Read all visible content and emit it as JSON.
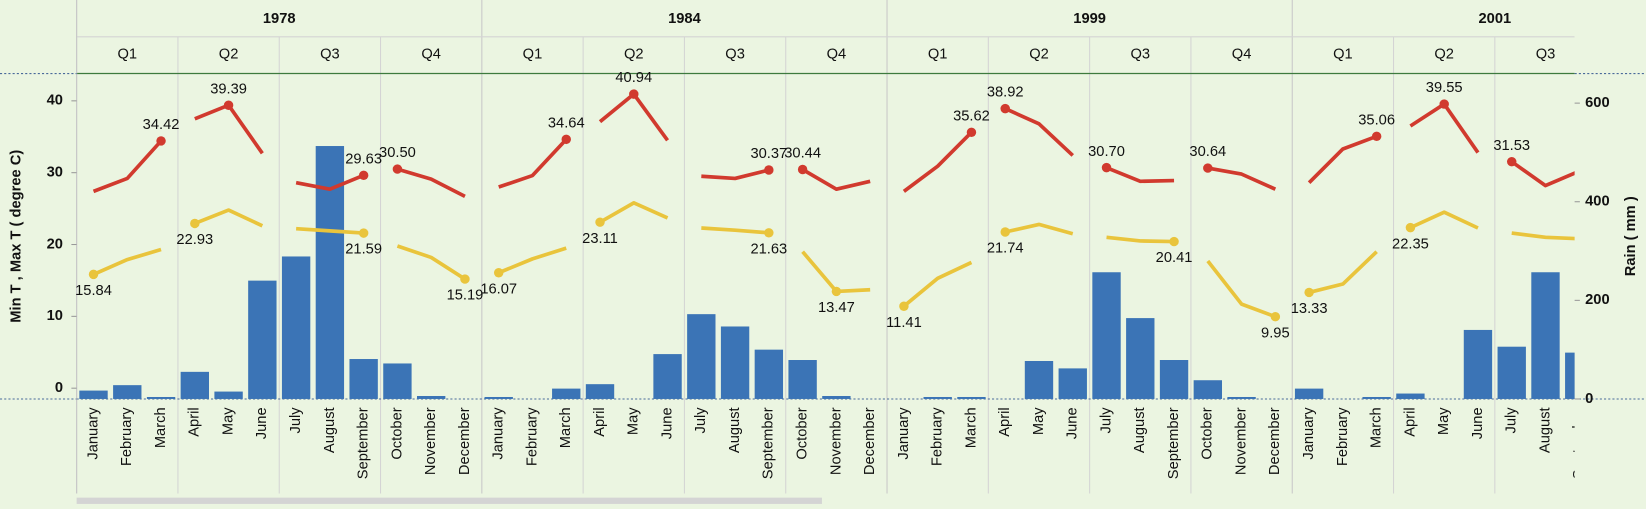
{
  "chart_data": {
    "type": "combo",
    "groups": [
      {
        "label": "1978",
        "quarters": [
          {
            "label": "Q1",
            "months": [
              "January",
              "February",
              "March"
            ]
          },
          {
            "label": "Q2",
            "months": [
              "April",
              "May",
              "June"
            ]
          },
          {
            "label": "Q3",
            "months": [
              "July",
              "August",
              "September"
            ]
          },
          {
            "label": "Q4",
            "months": [
              "October",
              "November",
              "December"
            ]
          }
        ]
      },
      {
        "label": "1984",
        "quarters": [
          {
            "label": "Q1",
            "months": [
              "January",
              "February",
              "March"
            ]
          },
          {
            "label": "Q2",
            "months": [
              "April",
              "May",
              "June"
            ]
          },
          {
            "label": "Q3",
            "months": [
              "July",
              "August",
              "September"
            ]
          },
          {
            "label": "Q4",
            "months": [
              "October",
              "November",
              "December"
            ]
          }
        ]
      },
      {
        "label": "1999",
        "quarters": [
          {
            "label": "Q1",
            "months": [
              "January",
              "February",
              "March"
            ]
          },
          {
            "label": "Q2",
            "months": [
              "April",
              "May",
              "June"
            ]
          },
          {
            "label": "Q3",
            "months": [
              "July",
              "August",
              "September"
            ]
          },
          {
            "label": "Q4",
            "months": [
              "October",
              "November",
              "December"
            ]
          }
        ]
      },
      {
        "label": "2001",
        "quarters": [
          {
            "label": "Q1",
            "months": [
              "January",
              "February",
              "March"
            ]
          },
          {
            "label": "Q2",
            "months": [
              "April",
              "May",
              "June"
            ]
          },
          {
            "label": "Q3",
            "months": [
              "July",
              "August",
              "September"
            ]
          }
        ]
      }
    ],
    "ylabel": "Min T , Max T ( degree C)",
    "y2label": "Rain ( mm )",
    "ylim": [
      -1.5,
      43.8
    ],
    "yticks": [
      0,
      10,
      20,
      30,
      40
    ],
    "y2lim": [
      0,
      660
    ],
    "y2ticks": [
      0,
      200,
      400,
      600
    ],
    "series": [
      {
        "name": "Rain",
        "kind": "bar",
        "axis": "y2",
        "color": "#3b74b6",
        "values": [
          17,
          28,
          4,
          55,
          15,
          240,
          289,
          513,
          81,
          72,
          6,
          0,
          4,
          0,
          21,
          30,
          0,
          91,
          172,
          147,
          100,
          79,
          6,
          0,
          0,
          4,
          4,
          0,
          77,
          62,
          257,
          164,
          79,
          38,
          4,
          0,
          21,
          0,
          4,
          11,
          0,
          140,
          106,
          257,
          94
        ]
      },
      {
        "name": "Max T",
        "kind": "line",
        "color": "#d13a2e",
        "values": [
          27.4,
          29.2,
          34.42,
          37.5,
          39.39,
          32.7,
          28.6,
          27.7,
          29.63,
          30.5,
          29.1,
          26.7,
          28.0,
          29.6,
          34.64,
          37.1,
          40.94,
          34.5,
          29.5,
          29.2,
          30.37,
          30.44,
          27.7,
          28.8,
          27.4,
          30.9,
          35.62,
          38.92,
          36.8,
          32.4,
          30.7,
          28.8,
          28.9,
          30.64,
          29.8,
          27.7,
          28.6,
          33.3,
          35.06,
          36.5,
          39.55,
          32.8,
          31.53,
          28.2,
          30.2
        ],
        "value_labels": [
          null,
          null,
          "34.42",
          null,
          "39.39",
          null,
          null,
          null,
          "29.63",
          "30.50",
          null,
          null,
          null,
          null,
          "34.64",
          null,
          "40.94",
          null,
          null,
          null,
          "30.37",
          "30.44",
          null,
          null,
          null,
          null,
          "35.62",
          "38.92",
          null,
          null,
          "30.70",
          null,
          null,
          "30.64",
          null,
          null,
          null,
          null,
          "35.06",
          null,
          "39.55",
          null,
          "31.53",
          null,
          null
        ]
      },
      {
        "name": "Min T",
        "kind": "line",
        "color": "#e9c43c",
        "values": [
          15.84,
          17.9,
          19.3,
          22.93,
          24.8,
          22.6,
          22.2,
          21.9,
          21.59,
          19.8,
          18.2,
          15.19,
          16.07,
          18.0,
          19.5,
          23.11,
          25.8,
          23.7,
          22.3,
          22.0,
          21.63,
          19.0,
          13.47,
          13.7,
          11.41,
          15.3,
          17.5,
          21.74,
          22.8,
          21.5,
          21.0,
          20.5,
          20.41,
          17.7,
          11.7,
          9.95,
          13.33,
          14.5,
          19.0,
          22.35,
          24.5,
          22.3,
          21.6,
          21.0,
          20.8
        ],
        "value_labels": [
          "15.84",
          null,
          null,
          "22.93",
          null,
          null,
          null,
          null,
          "21.59",
          null,
          null,
          "15.19",
          "16.07",
          null,
          null,
          "23.11",
          null,
          null,
          null,
          null,
          "21.63",
          null,
          "13.47",
          null,
          "11.41",
          null,
          null,
          "21.74",
          null,
          null,
          null,
          null,
          "20.41",
          null,
          null,
          "9.95",
          "13.33",
          null,
          null,
          "22.35",
          null,
          null,
          null,
          null,
          null
        ]
      }
    ]
  }
}
